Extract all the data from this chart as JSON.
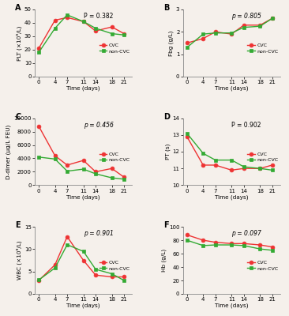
{
  "time": [
    0,
    4,
    7,
    11,
    14,
    18,
    21
  ],
  "panel_A": {
    "label": "A",
    "ylabel": "PLT (×10⁹/L)",
    "pvalue": "P = 0.382",
    "pvalue_italic": false,
    "ylim": [
      0,
      50
    ],
    "yticks": [
      0,
      10,
      20,
      30,
      40,
      50
    ],
    "cvc": [
      21,
      42,
      44,
      41,
      34,
      37,
      32
    ],
    "noncvc": [
      18,
      36,
      46,
      41,
      36,
      32,
      31
    ]
  },
  "panel_B": {
    "label": "B",
    "ylabel": "Fbg (g/L)",
    "pvalue": "p = 0.805",
    "pvalue_italic": true,
    "ylim": [
      0,
      3
    ],
    "yticks": [
      0,
      1,
      2,
      3
    ],
    "cvc": [
      1.5,
      1.7,
      2.0,
      1.9,
      2.3,
      2.3,
      2.6
    ],
    "noncvc": [
      1.3,
      1.9,
      1.95,
      1.95,
      2.2,
      2.25,
      2.6
    ]
  },
  "panel_C": {
    "label": "C",
    "ylabel": "D-dimer (μg/L FEU)",
    "pvalue": "p = 0.456",
    "pvalue_italic": true,
    "ylim": [
      0,
      10000
    ],
    "yticks": [
      0,
      2000,
      4000,
      6000,
      8000,
      10000
    ],
    "cvc": [
      8800,
      4400,
      3000,
      3700,
      2000,
      2500,
      1200
    ],
    "noncvc": [
      4200,
      3900,
      2100,
      2400,
      1700,
      1100,
      900
    ]
  },
  "panel_D": {
    "label": "D",
    "ylabel": "PT (s)",
    "pvalue": "P = 0.902",
    "pvalue_italic": false,
    "ylim": [
      10,
      14
    ],
    "yticks": [
      10,
      11,
      12,
      13,
      14
    ],
    "cvc": [
      12.9,
      11.2,
      11.2,
      10.9,
      11.0,
      11.0,
      11.2
    ],
    "noncvc": [
      13.1,
      11.9,
      11.5,
      11.5,
      11.1,
      11.0,
      10.9
    ]
  },
  "panel_E": {
    "label": "E",
    "ylabel": "WBC (×10⁹/L)",
    "pvalue": "p = 0.901",
    "pvalue_italic": true,
    "ylim": [
      0,
      15
    ],
    "yticks": [
      0,
      5,
      10,
      15
    ],
    "cvc": [
      3.0,
      6.5,
      12.8,
      7.5,
      4.2,
      3.8,
      3.8
    ],
    "noncvc": [
      3.1,
      5.8,
      11.0,
      9.5,
      5.5,
      4.5,
      3.0
    ]
  },
  "panel_F": {
    "label": "F",
    "ylabel": "Hb (g/L)",
    "pvalue": "p = 0.097",
    "pvalue_italic": true,
    "ylim": [
      0,
      100
    ],
    "yticks": [
      0,
      20,
      40,
      60,
      80,
      100
    ],
    "cvc": [
      88,
      80,
      77,
      75,
      75,
      73,
      70
    ],
    "noncvc": [
      80,
      72,
      73,
      73,
      72,
      67,
      65
    ]
  },
  "cvc_color": "#EE3333",
  "noncvc_color": "#33AA33",
  "bg_color": "#F5F0EB",
  "xlabel": "Time (days)",
  "xticks": [
    0,
    4,
    7,
    11,
    14,
    18,
    21
  ]
}
